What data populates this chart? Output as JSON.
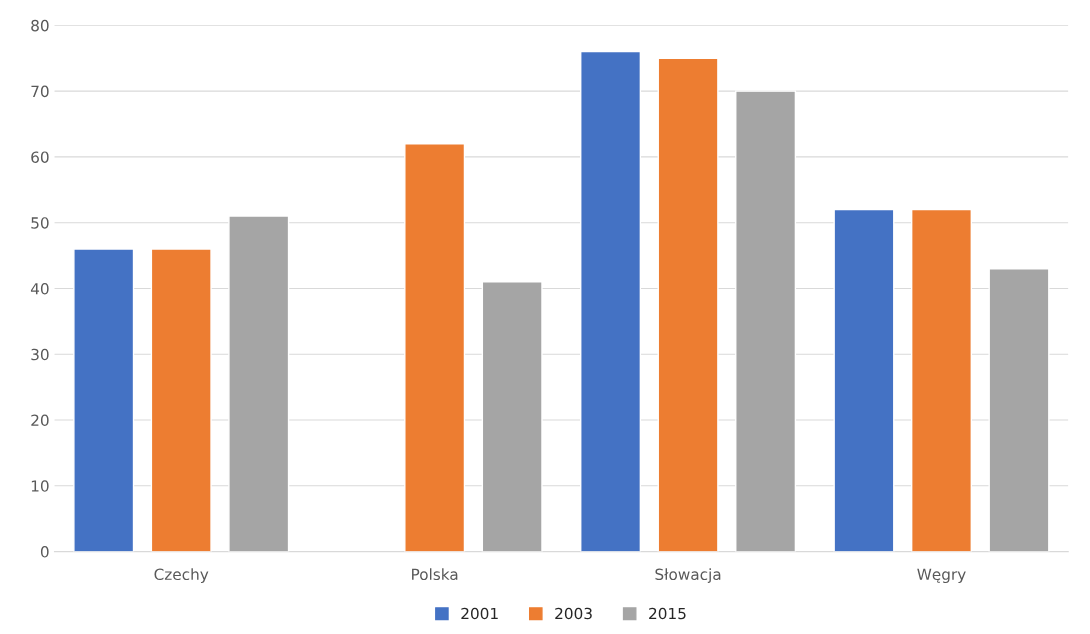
{
  "chart_data": {
    "type": "bar",
    "categories": [
      "Czechy",
      "Polska",
      "Słowacja",
      "Węgry"
    ],
    "series": [
      {
        "name": "2001",
        "color": "#4472c4",
        "values": [
          46,
          null,
          76,
          52
        ]
      },
      {
        "name": "2003",
        "color": "#ed7d31",
        "values": [
          46,
          62,
          75,
          52
        ]
      },
      {
        "name": "2015",
        "color": "#a5a5a5",
        "values": [
          51,
          41,
          70,
          43
        ]
      }
    ],
    "ylim": [
      0,
      80
    ],
    "yticks": [
      0,
      10,
      20,
      30,
      40,
      50,
      60,
      70,
      80
    ],
    "grid": "y",
    "legend": "bottom"
  }
}
